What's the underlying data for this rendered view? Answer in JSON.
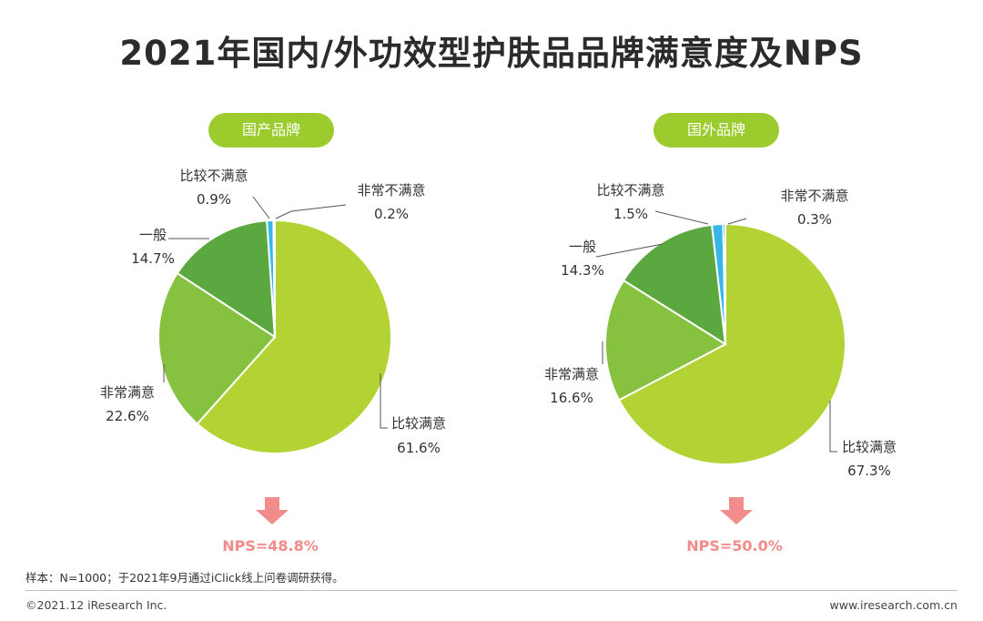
{
  "title": "2021年国内/外功效型护肤品品牌满意度及NPS",
  "colors": {
    "pill": "#9ccb2e",
    "slice_bijiao": "#b3d334",
    "slice_feichang": "#86c23f",
    "slice_yiban": "#5aa83f",
    "slice_bumanyi": "#35b8e8",
    "slice_feichangbu": "#1e4b9c",
    "arrow": "#f28b8b",
    "nps_text": "#f28b8b"
  },
  "chart_data": [
    {
      "type": "pie",
      "title": "国产品牌",
      "slices": [
        {
          "name": "比较满意",
          "value": 61.6,
          "label": "61.6%"
        },
        {
          "name": "非常满意",
          "value": 22.6,
          "label": "22.6%"
        },
        {
          "name": "一般",
          "value": 14.7,
          "label": "14.7%"
        },
        {
          "name": "比较不满意",
          "value": 0.9,
          "label": "0.9%"
        },
        {
          "name": "非常不满意",
          "value": 0.2,
          "label": "0.2%"
        }
      ],
      "nps": "NPS=48.8%"
    },
    {
      "type": "pie",
      "title": "国外品牌",
      "slices": [
        {
          "name": "比较满意",
          "value": 67.3,
          "label": "67.3%"
        },
        {
          "name": "非常满意",
          "value": 16.6,
          "label": "16.6%"
        },
        {
          "name": "一般",
          "value": 14.3,
          "label": "14.3%"
        },
        {
          "name": "比较不满意",
          "value": 1.5,
          "label": "1.5%"
        },
        {
          "name": "非常不满意",
          "value": 0.3,
          "label": "0.3%"
        }
      ],
      "nps": "NPS=50.0%"
    }
  ],
  "footer": {
    "sample": "样本：N=1000；于2021年9月通过iClick线上问卷调研获得。",
    "copyright": "©2021.12 iResearch Inc.",
    "website": "www.iresearch.com.cn"
  }
}
